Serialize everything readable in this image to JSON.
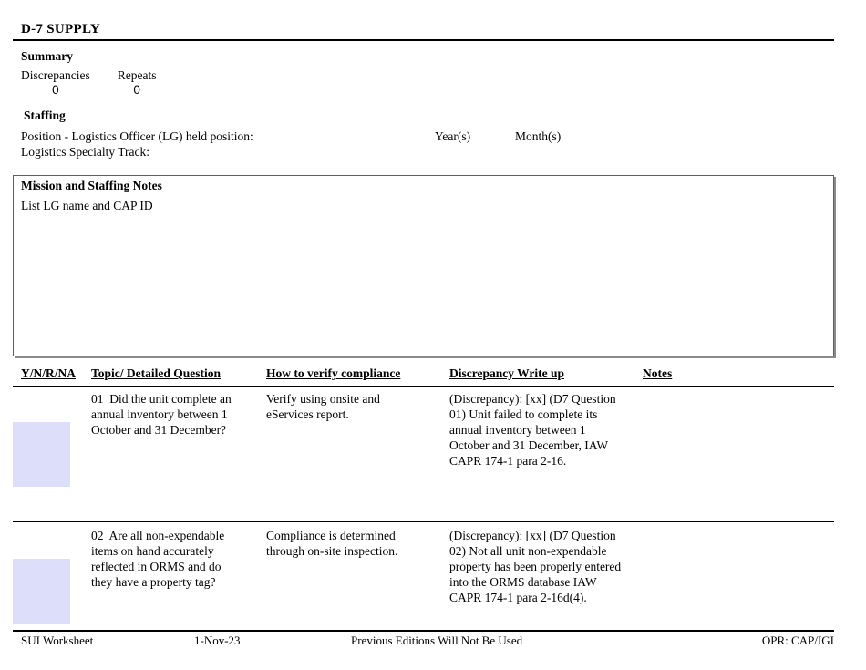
{
  "page": {
    "title": "D-7 SUPPLY"
  },
  "summary": {
    "heading": "Summary",
    "metrics": [
      {
        "label": "Discrepancies",
        "value": "0"
      },
      {
        "label": "Repeats",
        "value": "0"
      }
    ]
  },
  "staffing": {
    "heading": "Staffing",
    "position_label": "Position - Logistics Officer (LG) held position:",
    "years_label": "Year(s)",
    "months_label": "Month(s)",
    "track_label": "Logistics Specialty Track:"
  },
  "notes_box": {
    "title": "Mission and Staffing Notes",
    "content": "List LG name and CAP ID"
  },
  "table": {
    "headers": [
      "Y/N/R/NA",
      "Topic/ Detailed Question",
      "How to verify compliance",
      "Discrepancy Write up",
      "Notes"
    ],
    "rows": [
      {
        "answer": "",
        "question": "01  Did the unit complete an\nannual inventory between 1\nOctober and 31 December?",
        "verify": "Verify using onsite and\neServices report.",
        "discrepancy": "(Discrepancy): [xx] (D7 Question\n01) Unit failed to complete its\nannual inventory between 1\nOctober and 31 December, IAW\nCAPR 174-1 para 2-16.",
        "notes": ""
      },
      {
        "answer": "",
        "question": "02  Are all non-expendable\nitems on hand accurately\nreflected in ORMS and do\nthey have a property tag?",
        "verify": "Compliance is determined\nthrough on-site inspection.",
        "discrepancy": "(Discrepancy): [xx] (D7 Question\n02) Not all unit non-expendable\nproperty has been properly entered\ninto the ORMS database IAW\nCAPR 174-1 para 2-16d(4).",
        "notes": ""
      }
    ]
  },
  "footer": {
    "doc_name": "SUI Worksheet",
    "date": "1-Nov-23",
    "notice": "Previous Editions Will Not Be Used",
    "opr": "OPR: CAP/IGI"
  },
  "colors": {
    "answer_field_fill": "#dcdefa",
    "rule_color": "#000000",
    "notes_box_border": "#5f5f5f"
  }
}
